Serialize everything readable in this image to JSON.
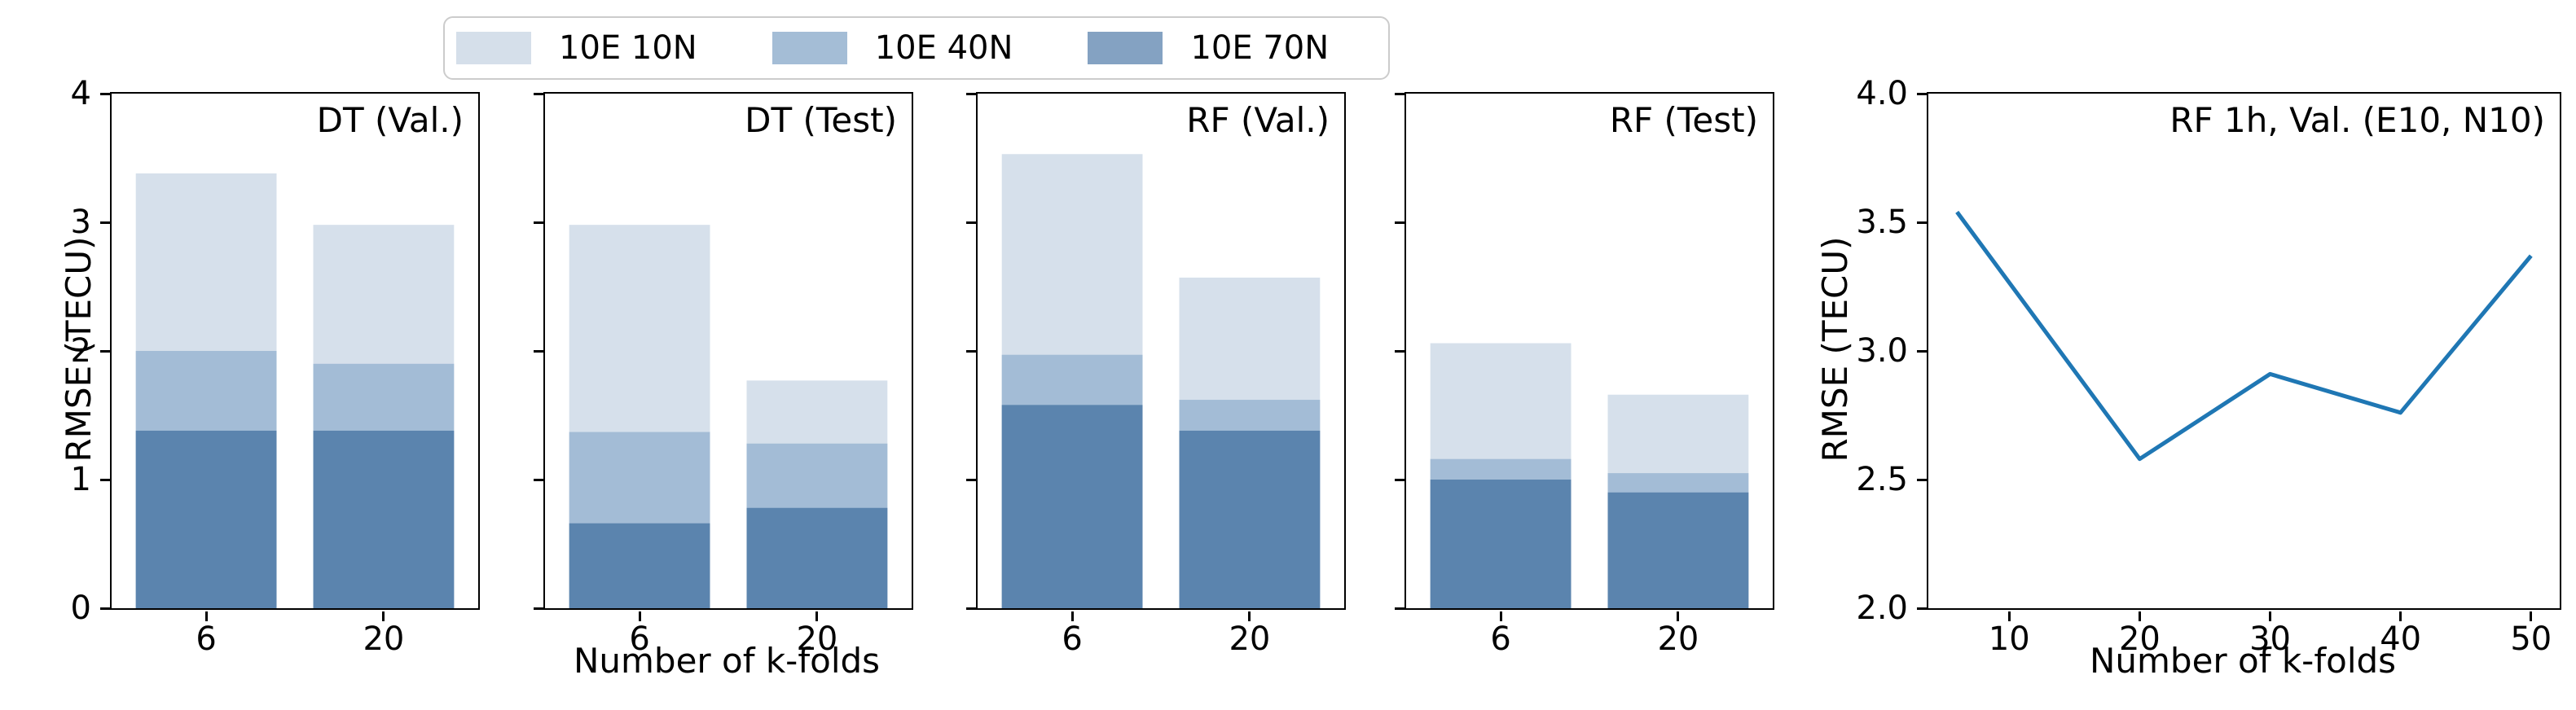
{
  "figure": {
    "background": "#ffffff",
    "spine_color": "#000000"
  },
  "legend": {
    "items": [
      {
        "label": "10E 10N",
        "color": "#d5dfea"
      },
      {
        "label": "10E 40N",
        "color": "#a4bdd6"
      },
      {
        "label": "10E 70N",
        "color": "#84a2c2"
      }
    ]
  },
  "colors": {
    "bar_region_light": "#d6e0eb",
    "bar_region_medium": "#a3bcd6",
    "bar_region_dark": "#5b84ae",
    "line": "#1f77b4"
  },
  "chart_data": [
    {
      "type": "bar",
      "style": "overlapping-translucent-bars",
      "title": "DT (Val.)",
      "categories": [
        "6",
        "20"
      ],
      "series": [
        {
          "name": "10E 10N",
          "values": [
            3.38,
            2.98
          ]
        },
        {
          "name": "10E 40N",
          "values": [
            2.0,
            1.9
          ]
        },
        {
          "name": "10E 70N",
          "values": [
            1.38,
            1.38
          ]
        }
      ],
      "xlabel": "",
      "ylabel": "RMSE (TECU)",
      "ylim": [
        0,
        4
      ],
      "yticks": [
        0,
        1,
        2,
        3,
        4
      ],
      "yticklabels": [
        "0",
        "1",
        "2",
        "3",
        "4"
      ],
      "show_ytick_labels": true,
      "grid": false
    },
    {
      "type": "bar",
      "style": "overlapping-translucent-bars",
      "title": "DT (Test)",
      "categories": [
        "6",
        "20"
      ],
      "series": [
        {
          "name": "10E 10N",
          "values": [
            2.98,
            1.77
          ]
        },
        {
          "name": "10E 40N",
          "values": [
            1.37,
            1.28
          ]
        },
        {
          "name": "10E 70N",
          "values": [
            0.66,
            0.78
          ]
        }
      ],
      "xlabel": "Number of k-folds",
      "ylabel": "",
      "ylim": [
        0,
        4
      ],
      "yticks": [
        0,
        1,
        2,
        3,
        4
      ],
      "yticklabels": [
        "0",
        "1",
        "2",
        "3",
        "4"
      ],
      "show_ytick_labels": false,
      "grid": false
    },
    {
      "type": "bar",
      "style": "overlapping-translucent-bars",
      "title": "RF (Val.)",
      "categories": [
        "6",
        "20"
      ],
      "series": [
        {
          "name": "10E 10N",
          "values": [
            3.53,
            2.57
          ]
        },
        {
          "name": "10E 40N",
          "values": [
            1.97,
            1.62
          ]
        },
        {
          "name": "10E 70N",
          "values": [
            1.58,
            1.38
          ]
        }
      ],
      "xlabel": "",
      "ylabel": "",
      "ylim": [
        0,
        4
      ],
      "yticks": [
        0,
        1,
        2,
        3,
        4
      ],
      "yticklabels": [
        "0",
        "1",
        "2",
        "3",
        "4"
      ],
      "show_ytick_labels": false,
      "grid": false
    },
    {
      "type": "bar",
      "style": "overlapping-translucent-bars",
      "title": "RF (Test)",
      "categories": [
        "6",
        "20"
      ],
      "series": [
        {
          "name": "10E 10N",
          "values": [
            2.06,
            1.66
          ]
        },
        {
          "name": "10E 40N",
          "values": [
            1.16,
            1.05
          ]
        },
        {
          "name": "10E 70N",
          "values": [
            1.0,
            0.9
          ]
        }
      ],
      "xlabel": "",
      "ylabel": "",
      "ylim": [
        0,
        4
      ],
      "yticks": [
        0,
        1,
        2,
        3,
        4
      ],
      "yticklabels": [
        "0",
        "1",
        "2",
        "3",
        "4"
      ],
      "show_ytick_labels": false,
      "grid": false
    },
    {
      "type": "line",
      "title": "RF 1h, Val. (E10, N10)",
      "x": [
        6,
        20,
        30,
        40,
        50
      ],
      "y": [
        3.54,
        2.58,
        2.91,
        2.76,
        3.37
      ],
      "xlabel": "Number of k-folds",
      "ylabel": "RMSE (TECU)",
      "xlim": [
        3.8,
        52.2
      ],
      "ylim": [
        2.0,
        4.0
      ],
      "xticks": [
        10,
        20,
        30,
        40,
        50
      ],
      "xticklabels": [
        "10",
        "20",
        "30",
        "40",
        "50"
      ],
      "yticks": [
        2.0,
        2.5,
        3.0,
        3.5,
        4.0
      ],
      "yticklabels": [
        "2.0",
        "2.5",
        "3.0",
        "3.5",
        "4.0"
      ],
      "grid": false,
      "legend_position": "none"
    }
  ]
}
